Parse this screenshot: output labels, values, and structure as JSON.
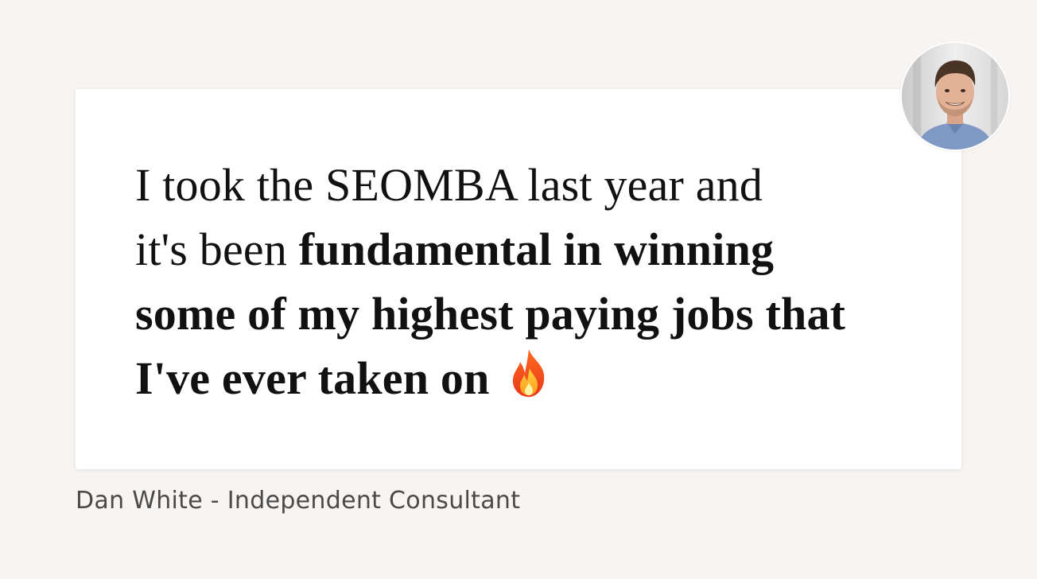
{
  "testimonial": {
    "lines": [
      {
        "regular": "I took the SEOMBA last year and",
        "bold": ""
      },
      {
        "regular": "it's been ",
        "bold": "fundamental in winning"
      },
      {
        "regular": "",
        "bold": "some of my highest paying jobs that"
      },
      {
        "regular": "",
        "bold": "I've ever taken on"
      }
    ],
    "emoji_icon": "fire-icon"
  },
  "author": {
    "text": "Dan White - Independent Consultant",
    "avatar_icon": "person-avatar"
  },
  "colors": {
    "background": "#f7f4f1",
    "card": "#ffffff",
    "quote_text": "#111111",
    "author_text": "#4a4a4a"
  }
}
